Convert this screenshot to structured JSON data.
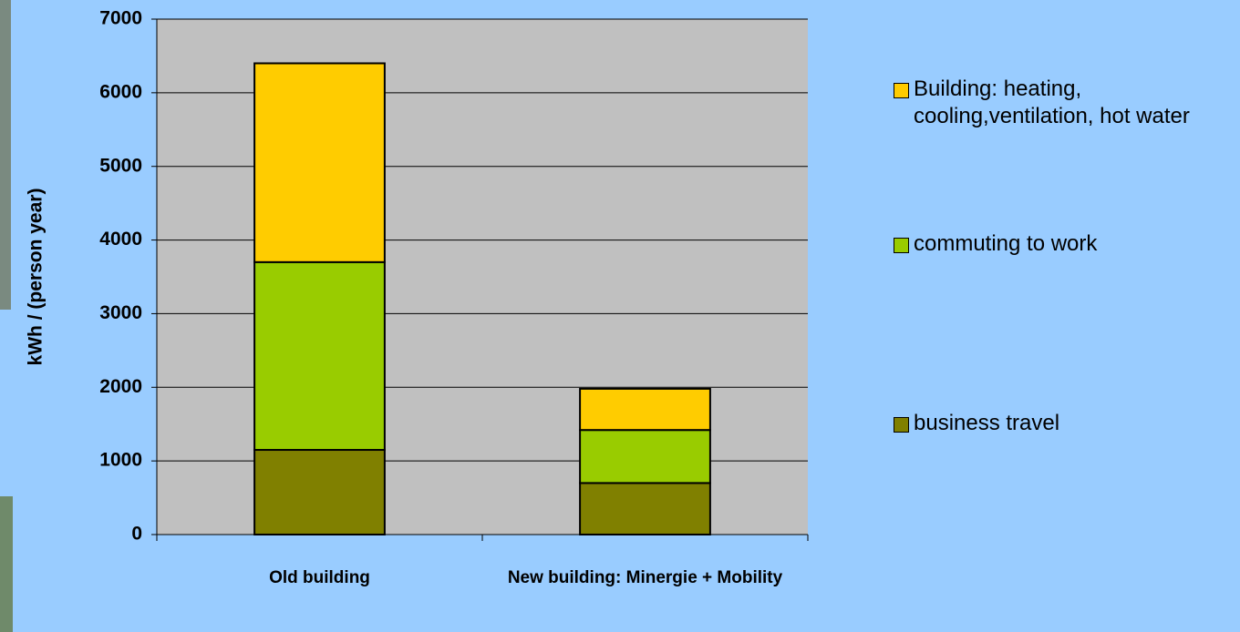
{
  "chart_data": {
    "type": "stacked_bar",
    "y_label": "kWh / (person year)",
    "categories": [
      "Old building",
      "New building: Minergie + Mobility"
    ],
    "series": [
      {
        "name": "business travel",
        "color": "#808000",
        "values": [
          1150,
          700
        ]
      },
      {
        "name": "commuting to work",
        "color": "#99cc00",
        "values": [
          2550,
          720
        ]
      },
      {
        "name": "Building: heating, cooling,ventilation, hot water",
        "color": "#ffcc00",
        "values": [
          2700,
          560
        ]
      }
    ],
    "ylim": [
      0,
      7000
    ],
    "yticks": [
      0,
      1000,
      2000,
      3000,
      4000,
      5000,
      6000,
      7000
    ],
    "grid": true,
    "legend": "right"
  }
}
